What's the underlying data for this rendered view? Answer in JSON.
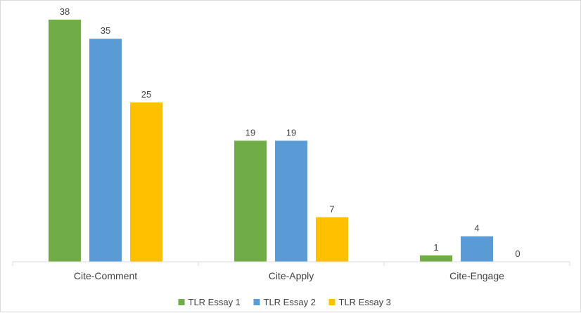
{
  "chart_data": {
    "type": "bar",
    "categories": [
      "Cite-Comment",
      "Cite-Apply",
      "Cite-Engage"
    ],
    "series": [
      {
        "name": "TLR Essay 1",
        "color": "#70AD47",
        "values": [
          38,
          19,
          1
        ]
      },
      {
        "name": "TLR Essay 2",
        "color": "#5B9BD5",
        "values": [
          35,
          19,
          4
        ]
      },
      {
        "name": "TLR Essay 3",
        "color": "#FFC000",
        "values": [
          25,
          7,
          0
        ]
      }
    ],
    "ylim": [
      0,
      38
    ],
    "grid": false,
    "legend_position": "bottom",
    "data_labels": true
  }
}
